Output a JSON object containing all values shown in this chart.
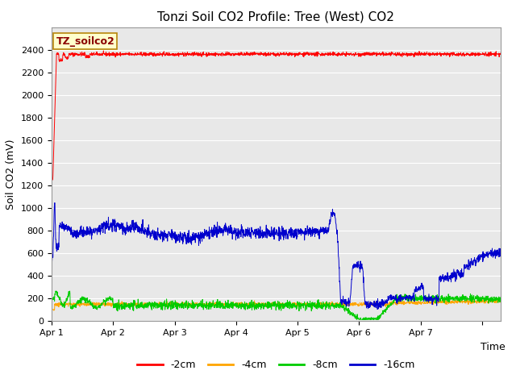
{
  "title": "Tonzi Soil CO2 Profile: Tree (West) CO2",
  "ylabel": "Soil CO2 (mV)",
  "xlabel": "Time",
  "annotation_text": "TZ_soilco2",
  "annotation_color": "#8b0000",
  "annotation_bg": "#ffffcc",
  "annotation_border": "#b8860b",
  "legend_labels": [
    "-2cm",
    "-4cm",
    "-8cm",
    "-16cm"
  ],
  "line_colors": {
    "2cm": "#ff0000",
    "4cm": "#ffa500",
    "8cm": "#00cc00",
    "16cm": "#0000cd"
  },
  "ylim": [
    0,
    2600
  ],
  "yticks": [
    0,
    200,
    400,
    600,
    800,
    1000,
    1200,
    1400,
    1600,
    1800,
    2000,
    2200,
    2400
  ],
  "n_points": 2000,
  "fig_bg_color": "#ffffff",
  "plot_bg_color": "#e8e8e8",
  "title_fontsize": 11,
  "axis_label_fontsize": 9,
  "tick_fontsize": 8
}
